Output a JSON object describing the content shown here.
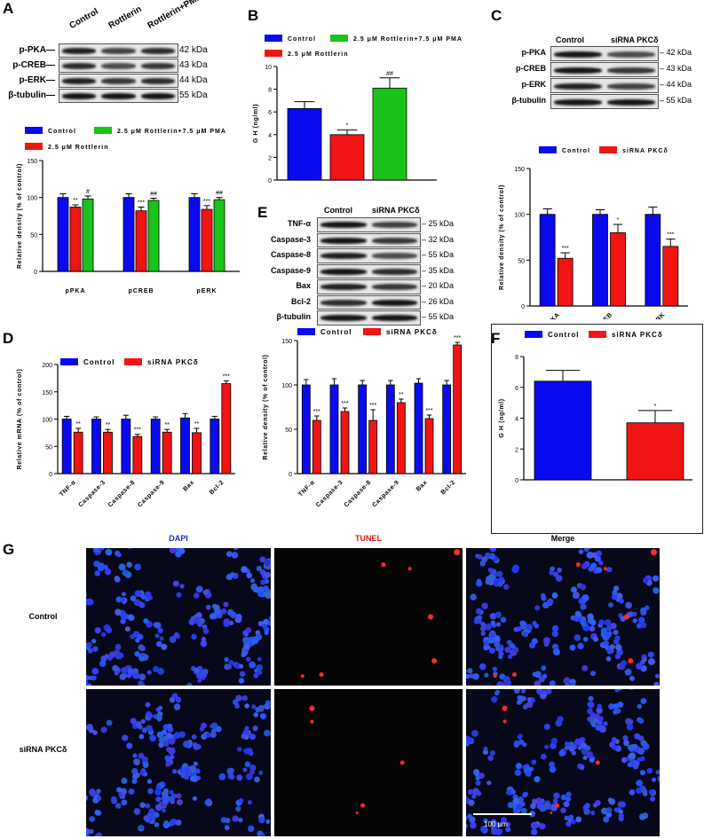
{
  "panels": {
    "A": "A",
    "B": "B",
    "C": "C",
    "D": "D",
    "E": "E",
    "F": "F",
    "G": "G"
  },
  "colors": {
    "blue": "#0a0af0",
    "red": "#f01414",
    "green": "#19c319"
  },
  "blot_A": {
    "lanes": [
      "Control",
      "Rottlerin",
      "Rottlerin+PMA"
    ],
    "rows": [
      "p-PKA",
      "p-CREB",
      "p-ERK",
      "β-tubulin"
    ],
    "sizes": [
      "42 kDa",
      "43 kDa",
      "44 kDa",
      "55 kDa"
    ]
  },
  "blot_C": {
    "lanes": [
      "Control",
      "siRNA PKCδ"
    ],
    "rows": [
      "p-PKA",
      "p-CREB",
      "p-ERK",
      "β-tubulin"
    ],
    "sizes": [
      "42 kDa",
      "43 kDa",
      "44 kDa",
      "55 kDa"
    ]
  },
  "blot_E": {
    "lanes": [
      "Control",
      "siRNA PKCδ"
    ],
    "rows": [
      "TNF-α",
      "Caspase-3",
      "Caspase-8",
      "Caspase-9",
      "Bax",
      "Bcl-2",
      "β-tubulin"
    ],
    "sizes": [
      "25 kDa",
      "32 kDa",
      "55 kDa",
      "35 kDa",
      "20 kDa",
      "26 kDa",
      "55 kDa"
    ]
  },
  "legend_A": [
    "Control",
    "2.5 μM Rottlerin+7.5 μM PMA",
    "2.5 μM Rottlerin"
  ],
  "legend_B": [
    "Control",
    "2.5 μM Rottlerin+7.5 μM PMA",
    "2.5 μM Rottlerin"
  ],
  "legend_C": [
    "Control",
    "siRNA PKCδ"
  ],
  "legend_D1": [
    "Control",
    "siRNA PKCδ"
  ],
  "legend_D2": [
    "Control",
    "siRNA PKCδ"
  ],
  "legend_F": [
    "Control",
    "siRNA PKCδ"
  ],
  "micrograph": {
    "columns": [
      "DAPI",
      "TUNEL",
      "Merge"
    ],
    "rows": [
      "Control",
      "siRNA PKCδ"
    ],
    "scalebar": "100 μm"
  },
  "chart_data": [
    {
      "id": "A",
      "type": "bar",
      "categories": [
        "pPKA",
        "pCREB",
        "pERK"
      ],
      "series": [
        {
          "name": "Control",
          "values": [
            100,
            100,
            100
          ],
          "errors": [
            5,
            5,
            5
          ],
          "sig": [
            "",
            "",
            ""
          ]
        },
        {
          "name": "2.5 μM Rottlerin",
          "values": [
            87,
            82,
            84
          ],
          "errors": [
            3,
            5,
            5
          ],
          "sig": [
            "**",
            "***",
            "***"
          ]
        },
        {
          "name": "2.5 μM Rottlerin+7.5 μM PMA",
          "values": [
            98,
            96,
            97
          ],
          "errors": [
            4,
            3,
            3
          ],
          "sig": [
            "#",
            "##",
            "##"
          ]
        }
      ],
      "ylabel": "Relative density (% of control)",
      "ylim": [
        0,
        150
      ],
      "yticks": [
        0,
        50,
        100,
        150
      ]
    },
    {
      "id": "B",
      "type": "bar",
      "categories": [
        "Control",
        "2.5 μM Rottlerin",
        "2.5 μM Rottlerin+7.5 μM PMA"
      ],
      "values": [
        6.3,
        4.0,
        8.1
      ],
      "errors": [
        0.6,
        0.4,
        0.9
      ],
      "sig": [
        "",
        "*",
        "##"
      ],
      "ylabel": "G H (ng/ml)",
      "ylim": [
        0,
        10
      ],
      "yticks": [
        0,
        2,
        4,
        6,
        8,
        10
      ]
    },
    {
      "id": "C",
      "type": "bar",
      "categories": [
        "pPKA",
        "pCREB",
        "pERK"
      ],
      "series": [
        {
          "name": "Control",
          "values": [
            100,
            100,
            100
          ],
          "errors": [
            6,
            5,
            8
          ],
          "sig": [
            "",
            "",
            ""
          ]
        },
        {
          "name": "siRNA PKCδ",
          "values": [
            52,
            80,
            65
          ],
          "errors": [
            6,
            9,
            8
          ],
          "sig": [
            "***",
            "*",
            "***"
          ]
        }
      ],
      "ylabel": "Relative density (% of control)",
      "ylim": [
        0,
        150
      ],
      "yticks": [
        0,
        50,
        100,
        150
      ]
    },
    {
      "id": "D1",
      "type": "bar",
      "categories": [
        "TNF-α",
        "Caspase-3",
        "Caspase-8",
        "Caspase-9",
        "Bax",
        "Bcl-2"
      ],
      "series": [
        {
          "name": "Control",
          "values": [
            100,
            100,
            100,
            100,
            102,
            100
          ],
          "errors": [
            5,
            4,
            7,
            4,
            8,
            5
          ],
          "sig": [
            "",
            "",
            "",
            "",
            "",
            ""
          ]
        },
        {
          "name": "siRNA PKCδ",
          "values": [
            76,
            76,
            68,
            76,
            75,
            165
          ],
          "errors": [
            7,
            5,
            4,
            5,
            8,
            5
          ],
          "sig": [
            "**",
            "**",
            "***",
            "**",
            "**",
            "***"
          ]
        }
      ],
      "ylabel": "Relative mRNA (% of control)",
      "ylim": [
        0,
        200
      ],
      "yticks": [
        0,
        50,
        100,
        150,
        200
      ]
    },
    {
      "id": "D2",
      "type": "bar",
      "categories": [
        "TNF-α",
        "Caspase-3",
        "Caspase-8",
        "Caspase-9",
        "Bax",
        "Bcl-2"
      ],
      "series": [
        {
          "name": "Control",
          "values": [
            100,
            100,
            100,
            100,
            102,
            100
          ],
          "errors": [
            6,
            7,
            5,
            5,
            5,
            5
          ],
          "sig": [
            "",
            "",
            "",
            "",
            "",
            ""
          ]
        },
        {
          "name": "siRNA PKCδ",
          "values": [
            60,
            70,
            60,
            80,
            62,
            145
          ],
          "errors": [
            5,
            4,
            12,
            4,
            4,
            3
          ],
          "sig": [
            "***",
            "***",
            "***",
            "**",
            "***",
            "***"
          ]
        }
      ],
      "ylabel": "Relative density (% of control)",
      "ylim": [
        0,
        150
      ],
      "yticks": [
        0,
        50,
        100,
        150
      ]
    },
    {
      "id": "F",
      "type": "bar",
      "categories": [
        "Control",
        "siRNA PKCδ"
      ],
      "values": [
        6.4,
        3.7
      ],
      "errors": [
        0.7,
        0.8
      ],
      "sig": [
        "",
        "*"
      ],
      "ylabel": "G H (ng/ml)",
      "ylim": [
        0,
        8
      ],
      "yticks": [
        0,
        2,
        4,
        6,
        8
      ]
    }
  ]
}
